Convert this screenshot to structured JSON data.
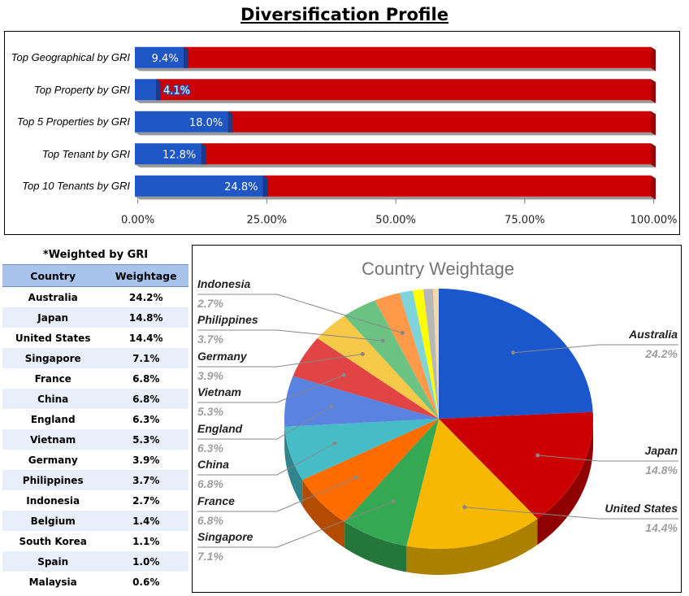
{
  "title": "Diversification Profile",
  "chart_data": [
    {
      "type": "bar",
      "orientation": "horizontal",
      "stacked_percent": true,
      "categories": [
        "Top Geographical by GRI",
        "Top Property by GRI",
        "Top 5 Properties by GRI",
        "Top Tenant by GRI",
        "Top 10 Tenants by GRI"
      ],
      "values": [
        9.4,
        4.1,
        18.0,
        12.8,
        24.8
      ],
      "data_labels": [
        "9.4%",
        "4.1%",
        "18.0%",
        "12.8%",
        "24.8%"
      ],
      "xlim": [
        0,
        100
      ],
      "xticks": [
        "0.00%",
        "25.00%",
        "50.00%",
        "75.00%",
        "100.00%"
      ],
      "colors": {
        "value": "#1f56c6",
        "remainder": "#cc0000"
      },
      "grid": false
    },
    {
      "type": "table",
      "caption": "*Weighted by GRI",
      "columns": [
        "Country",
        "Weightage"
      ],
      "rows": [
        [
          "Australia",
          "24.2%"
        ],
        [
          "Japan",
          "14.8%"
        ],
        [
          "United States",
          "14.4%"
        ],
        [
          "Singapore",
          "7.1%"
        ],
        [
          "France",
          "6.8%"
        ],
        [
          "China",
          "6.8%"
        ],
        [
          "England",
          "6.3%"
        ],
        [
          "Vietnam",
          "5.3%"
        ],
        [
          "Germany",
          "3.9%"
        ],
        [
          "Philippines",
          "3.7%"
        ],
        [
          "Indonesia",
          "2.7%"
        ],
        [
          "Belgium",
          "1.4%"
        ],
        [
          "South Korea",
          "1.1%"
        ],
        [
          "Spain",
          "1.0%"
        ],
        [
          "Malaysia",
          "0.6%"
        ]
      ]
    },
    {
      "type": "pie",
      "style": "3d",
      "title": "Country Weightage",
      "slices": [
        {
          "label": "Australia",
          "value": 24.2,
          "pct": "24.2%",
          "color": "#1a56cc"
        },
        {
          "label": "Japan",
          "value": 14.8,
          "pct": "14.8%",
          "color": "#cc0000"
        },
        {
          "label": "United States",
          "value": 14.4,
          "pct": "14.4%",
          "color": "#f6b800"
        },
        {
          "label": "Singapore",
          "value": 7.1,
          "pct": "7.1%",
          "color": "#34a853"
        },
        {
          "label": "France",
          "value": 6.8,
          "pct": "6.8%",
          "color": "#ff6d01"
        },
        {
          "label": "China",
          "value": 6.8,
          "pct": "6.8%",
          "color": "#46bdc6"
        },
        {
          "label": "England",
          "value": 6.3,
          "pct": "6.3%",
          "color": "#5a82e0"
        },
        {
          "label": "Vietnam",
          "value": 5.3,
          "pct": "5.3%",
          "color": "#e04444"
        },
        {
          "label": "Germany",
          "value": 3.9,
          "pct": "3.9%",
          "color": "#f7c948"
        },
        {
          "label": "Philippines",
          "value": 3.7,
          "pct": "3.7%",
          "color": "#6bc383"
        },
        {
          "label": "Indonesia",
          "value": 2.7,
          "pct": "2.7%",
          "color": "#ff9a4a"
        },
        {
          "label": "Belgium",
          "value": 1.4,
          "color": "#7fd4db"
        },
        {
          "label": "South Korea",
          "value": 1.1,
          "color": "#ffff00"
        },
        {
          "label": "Spain",
          "value": 1.0,
          "color": "#b7b7b7"
        },
        {
          "label": "Malaysia",
          "value": 0.6,
          "color": "#f2d8a8"
        }
      ]
    }
  ]
}
